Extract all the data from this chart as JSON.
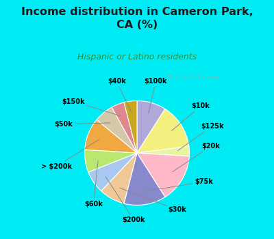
{
  "title": "Income distribution in Cameron Park,\nCA (%)",
  "subtitle": "Hispanic or Latino residents",
  "labels": [
    "$100k",
    "$10k",
    "$125k",
    "$20k",
    "$75k",
    "$30k",
    "$200k",
    "$60k",
    "> $200k",
    "$50k",
    "$150k",
    "$40k"
  ],
  "sizes": [
    9,
    14,
    3,
    15,
    13,
    8,
    7,
    7,
    10,
    6,
    4,
    4
  ],
  "colors": [
    "#b0a8d8",
    "#f4f080",
    "#e8f4a0",
    "#ffb8c8",
    "#8888cc",
    "#f0c898",
    "#a8c8f0",
    "#b8e870",
    "#f0a840",
    "#d4c8a8",
    "#e08890",
    "#c8a820"
  ],
  "bg_color": "#00ecf4",
  "chart_bg_top": "#e8f8f0",
  "chart_bg_bottom": "#c8e8d8",
  "title_color": "#1a1a1a",
  "subtitle_color": "#2a9040",
  "watermark": "© City-Data.com",
  "startangle": 90
}
